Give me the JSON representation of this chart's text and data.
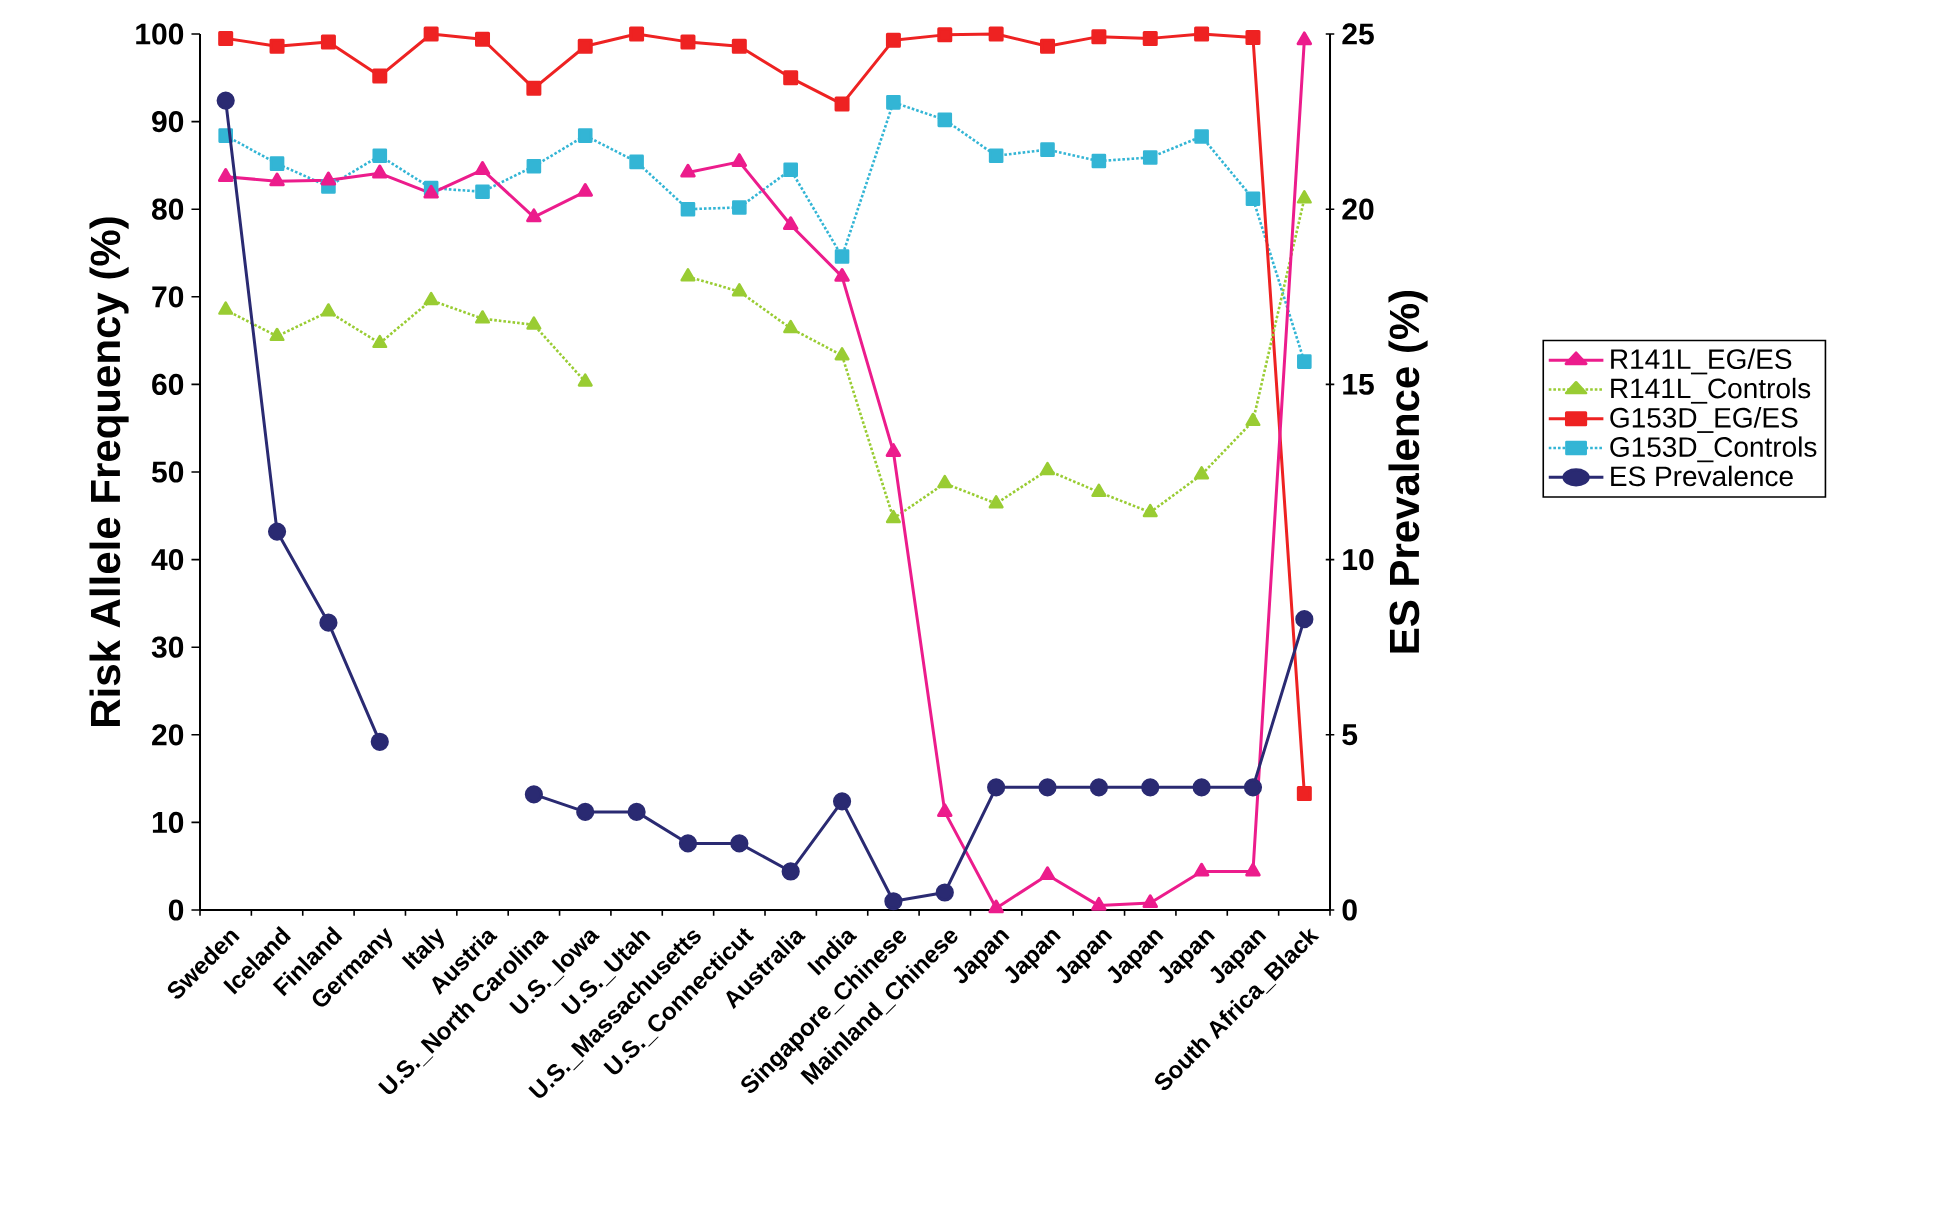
{
  "chart_data": {
    "type": "line",
    "categories": [
      "Sweden",
      "Iceland",
      "Finland",
      "Germany",
      "Italy",
      "Austria",
      "U.S._North Carolina",
      "U.S._Iowa",
      "U.S._Utah",
      "U.S._Massachusetts",
      "U.S._Connecticut",
      "Australia",
      "India",
      "Singapore_Chinese",
      "Mainland_Chinese",
      "Japan",
      "Japan",
      "Japan",
      "Japan",
      "Japan",
      "Japan",
      "South Africa_Black"
    ],
    "ylabel": "Risk Allele Frequency (%)",
    "y2label": "ES Prevalence (%)",
    "ylim": [
      0,
      100
    ],
    "yticks": [
      0,
      10,
      20,
      30,
      40,
      50,
      60,
      70,
      80,
      90,
      100
    ],
    "y2lim": [
      0,
      25
    ],
    "y2ticks": [
      0,
      5,
      10,
      15,
      20,
      25
    ],
    "grid": false,
    "legend": "right",
    "series": [
      {
        "name": "R141L_EG/ES",
        "color": "#ec1c8c",
        "marker": "triangle",
        "line_style": "solid",
        "values": [
          83.7,
          83.2,
          83.3,
          84.1,
          81.8,
          84.5,
          79.1,
          82.0,
          null,
          84.2,
          85.4,
          78.2,
          72.3,
          52.3,
          11.2,
          0.2,
          4.0,
          0.5,
          0.8,
          4.4,
          4.4,
          99.3
        ]
      },
      {
        "name": "R141L_Controls",
        "color": "#99cc33",
        "marker": "triangle",
        "line_style": "dotted",
        "values": [
          68.5,
          65.5,
          68.3,
          64.7,
          69.6,
          67.5,
          66.8,
          60.3,
          null,
          72.3,
          70.6,
          66.4,
          63.3,
          44.7,
          48.7,
          46.4,
          50.2,
          47.7,
          45.4,
          49.7,
          55.8,
          81.2
        ]
      },
      {
        "name": "G153D_EG/ES",
        "color": "#ee2222",
        "marker": "square",
        "line_style": "solid",
        "values": [
          99.5,
          98.6,
          99.1,
          95.2,
          100,
          99.4,
          93.8,
          98.6,
          100,
          99.1,
          98.6,
          95.0,
          92.0,
          99.3,
          99.9,
          100,
          98.6,
          99.7,
          99.5,
          100,
          99.6,
          13.3
        ]
      },
      {
        "name": "G153D_Controls",
        "color": "#33b5d5",
        "marker": "square",
        "line_style": "dotted",
        "values": [
          88.4,
          85.2,
          82.6,
          86.1,
          82.4,
          82.0,
          84.9,
          88.4,
          85.4,
          80.0,
          80.2,
          84.5,
          74.6,
          92.2,
          90.2,
          86.1,
          86.8,
          85.5,
          85.9,
          88.3,
          81.2,
          62.6
        ]
      },
      {
        "name": "ES Prevalence",
        "color": "#2a2a72",
        "marker": "circle",
        "line_style": "solid",
        "axis": "y2",
        "values": [
          23.1,
          10.8,
          8.2,
          4.8,
          null,
          null,
          3.3,
          2.8,
          2.8,
          1.9,
          1.9,
          1.1,
          3.1,
          0.25,
          0.5,
          3.5,
          3.5,
          3.5,
          3.5,
          3.5,
          3.5,
          8.3
        ]
      }
    ]
  }
}
